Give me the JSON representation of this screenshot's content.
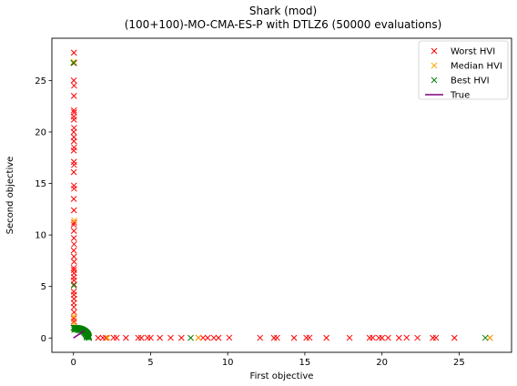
{
  "chart_data": {
    "type": "scatter",
    "title": "Shark (mod)",
    "subtitle": "(100+100)-MO-CMA-ES-P with DTLZ6 (50000 evaluations)",
    "xlabel": "First objective",
    "ylabel": "Second objective",
    "xlim": [
      -1.4,
      28.4
    ],
    "ylim": [
      -1.39,
      29.1
    ],
    "xticks": [
      0,
      5,
      10,
      15,
      20,
      25
    ],
    "yticks": [
      0,
      5,
      10,
      15,
      20,
      25
    ],
    "grid": false,
    "legend_position": "top-right",
    "series": [
      {
        "name": "Worst HVI",
        "color": "#ff0000",
        "marker": "x",
        "points": [
          [
            0.03,
            27.7
          ],
          [
            0.04,
            26.7
          ],
          [
            0.02,
            25.0
          ],
          [
            0.04,
            24.5
          ],
          [
            0.03,
            23.5
          ],
          [
            0.03,
            22.1
          ],
          [
            0.04,
            21.9
          ],
          [
            0.02,
            21.5
          ],
          [
            0.03,
            21.2
          ],
          [
            0.04,
            20.4
          ],
          [
            0.02,
            20.0
          ],
          [
            0.03,
            19.5
          ],
          [
            0.03,
            19.1
          ],
          [
            0.04,
            18.5
          ],
          [
            0.02,
            18.2
          ],
          [
            0.03,
            17.1
          ],
          [
            0.04,
            16.8
          ],
          [
            0.02,
            16.1
          ],
          [
            0.03,
            14.8
          ],
          [
            0.04,
            14.5
          ],
          [
            0.02,
            13.5
          ],
          [
            0.03,
            12.4
          ],
          [
            0.04,
            11.2
          ],
          [
            0.02,
            11.0
          ],
          [
            0.03,
            10.4
          ],
          [
            0.03,
            9.7
          ],
          [
            0.04,
            9.1
          ],
          [
            0.02,
            8.5
          ],
          [
            0.03,
            7.9
          ],
          [
            0.04,
            7.4
          ],
          [
            0.02,
            6.8
          ],
          [
            0.03,
            6.6
          ],
          [
            0.04,
            6.3
          ],
          [
            0.02,
            5.9
          ],
          [
            0.03,
            5.6
          ],
          [
            0.04,
            5.2
          ],
          [
            0.02,
            4.5
          ],
          [
            0.03,
            4.2
          ],
          [
            0.04,
            3.8
          ],
          [
            0.02,
            3.4
          ],
          [
            0.03,
            3.0
          ],
          [
            0.04,
            2.5
          ],
          [
            0.02,
            1.9
          ],
          [
            0.03,
            1.6
          ],
          [
            1.6,
            0.01
          ],
          [
            1.9,
            0.02
          ],
          [
            2.1,
            0.01
          ],
          [
            2.6,
            0.03
          ],
          [
            2.8,
            0.02
          ],
          [
            3.4,
            0.01
          ],
          [
            4.2,
            0.02
          ],
          [
            4.4,
            0.01
          ],
          [
            4.8,
            0.03
          ],
          [
            5.0,
            0.02
          ],
          [
            5.6,
            0.01
          ],
          [
            6.3,
            0.02
          ],
          [
            7.0,
            0.01
          ],
          [
            8.1,
            0.03
          ],
          [
            8.4,
            0.02
          ],
          [
            8.7,
            0.01
          ],
          [
            9.1,
            0.02
          ],
          [
            9.4,
            0.01
          ],
          [
            10.1,
            0.03
          ],
          [
            12.1,
            0.02
          ],
          [
            13.0,
            0.01
          ],
          [
            13.2,
            0.02
          ],
          [
            14.3,
            0.01
          ],
          [
            15.1,
            0.02
          ],
          [
            15.3,
            0.03
          ],
          [
            16.4,
            0.01
          ],
          [
            17.9,
            0.02
          ],
          [
            19.2,
            0.01
          ],
          [
            19.4,
            0.03
          ],
          [
            19.8,
            0.02
          ],
          [
            20.0,
            0.01
          ],
          [
            20.4,
            0.02
          ],
          [
            21.1,
            0.01
          ],
          [
            21.6,
            0.03
          ],
          [
            22.3,
            0.02
          ],
          [
            23.3,
            0.01
          ],
          [
            23.5,
            0.02
          ],
          [
            24.7,
            0.01
          ],
          [
            27.0,
            0.02
          ]
        ]
      },
      {
        "name": "Median HVI",
        "color": "#ffa500",
        "marker": "x",
        "points": [
          [
            0.02,
            26.8
          ],
          [
            0.05,
            11.4
          ],
          [
            0.03,
            2.1
          ],
          [
            0.04,
            1.4
          ],
          [
            2.2,
            0.01
          ],
          [
            8.1,
            0.02
          ],
          [
            27.0,
            0.01
          ],
          [
            0.05,
            1.0
          ],
          [
            0.15,
            1.0
          ],
          [
            0.25,
            0.98
          ],
          [
            0.35,
            0.95
          ],
          [
            0.45,
            0.9
          ],
          [
            0.55,
            0.84
          ],
          [
            0.65,
            0.77
          ],
          [
            0.75,
            0.67
          ],
          [
            0.82,
            0.58
          ],
          [
            0.88,
            0.48
          ],
          [
            0.93,
            0.37
          ],
          [
            0.97,
            0.26
          ],
          [
            0.99,
            0.14
          ],
          [
            1.0,
            0.05
          ]
        ]
      },
      {
        "name": "Best HVI",
        "color": "#008000",
        "marker": "x",
        "points": [
          [
            0.0,
            26.7
          ],
          [
            0.02,
            5.1
          ],
          [
            7.6,
            0.01
          ],
          [
            26.7,
            0.02
          ],
          [
            0.0,
            1.0
          ],
          [
            0.03,
            0.99
          ],
          [
            0.07,
            0.99
          ],
          [
            0.1,
            0.99
          ],
          [
            0.14,
            0.98
          ],
          [
            0.17,
            0.98
          ],
          [
            0.2,
            0.97
          ],
          [
            0.24,
            0.97
          ],
          [
            0.27,
            0.96
          ],
          [
            0.3,
            0.95
          ],
          [
            0.33,
            0.94
          ],
          [
            0.37,
            0.93
          ],
          [
            0.4,
            0.92
          ],
          [
            0.43,
            0.9
          ],
          [
            0.46,
            0.89
          ],
          [
            0.49,
            0.87
          ],
          [
            0.52,
            0.85
          ],
          [
            0.55,
            0.84
          ],
          [
            0.58,
            0.82
          ],
          [
            0.6,
            0.8
          ],
          [
            0.63,
            0.77
          ],
          [
            0.66,
            0.75
          ],
          [
            0.68,
            0.73
          ],
          [
            0.71,
            0.71
          ],
          [
            0.73,
            0.68
          ],
          [
            0.75,
            0.66
          ],
          [
            0.77,
            0.63
          ],
          [
            0.8,
            0.6
          ],
          [
            0.82,
            0.58
          ],
          [
            0.83,
            0.55
          ],
          [
            0.85,
            0.52
          ],
          [
            0.87,
            0.49
          ],
          [
            0.89,
            0.46
          ],
          [
            0.9,
            0.43
          ],
          [
            0.92,
            0.4
          ],
          [
            0.93,
            0.37
          ],
          [
            0.94,
            0.33
          ],
          [
            0.95,
            0.3
          ],
          [
            0.96,
            0.27
          ],
          [
            0.97,
            0.24
          ],
          [
            0.98,
            0.2
          ],
          [
            0.98,
            0.17
          ],
          [
            0.99,
            0.14
          ],
          [
            0.99,
            0.1
          ],
          [
            0.99,
            0.07
          ],
          [
            1.0,
            0.03
          ],
          [
            1.0,
            0.0
          ],
          [
            0.05,
            0.8
          ],
          [
            0.15,
            0.82
          ],
          [
            0.25,
            0.78
          ],
          [
            0.35,
            0.74
          ],
          [
            0.45,
            0.7
          ],
          [
            0.55,
            0.64
          ],
          [
            0.65,
            0.57
          ],
          [
            0.72,
            0.48
          ],
          [
            0.78,
            0.38
          ],
          [
            0.82,
            0.27
          ],
          [
            0.85,
            0.16
          ],
          [
            0.86,
            0.06
          ],
          [
            0.1,
            0.9
          ],
          [
            0.3,
            0.86
          ],
          [
            0.5,
            0.78
          ],
          [
            0.62,
            0.68
          ],
          [
            0.7,
            0.6
          ],
          [
            0.76,
            0.5
          ],
          [
            0.8,
            0.4
          ],
          [
            0.84,
            0.3
          ]
        ]
      },
      {
        "name": "True",
        "color": "#800080",
        "marker": "line",
        "points": [
          [
            0.0,
            0.0
          ],
          [
            0.1,
            0.1
          ],
          [
            0.2,
            0.2
          ],
          [
            0.3,
            0.3
          ],
          [
            0.4,
            0.4
          ],
          [
            0.5,
            0.5
          ],
          [
            0.6,
            0.6
          ],
          [
            0.7,
            0.7
          ],
          [
            0.71,
            0.71
          ]
        ]
      }
    ]
  }
}
